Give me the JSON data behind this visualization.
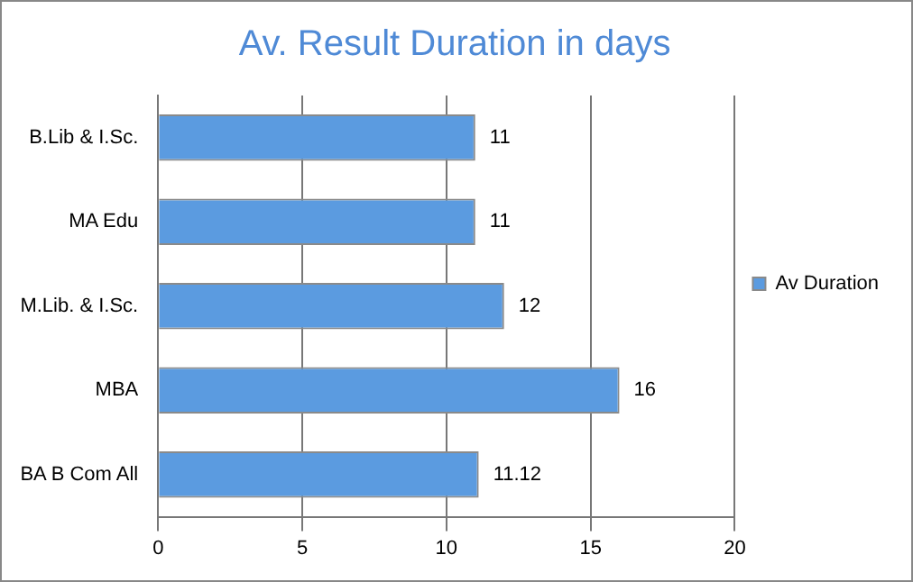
{
  "chart_data": {
    "type": "bar",
    "orientation": "horizontal",
    "title": "Av. Result Duration in days",
    "categories": [
      "B.Lib & I.Sc.",
      "MA Edu",
      "M.Lib. & I.Sc.",
      "MBA",
      "BA B Com All"
    ],
    "series": [
      {
        "name": "Av Duration",
        "color": "#5b9be0",
        "values": [
          11,
          11,
          12,
          16,
          11.12
        ]
      }
    ],
    "xlim": [
      0,
      20
    ],
    "xticks": [
      0,
      5,
      10,
      15,
      20
    ],
    "grid": "x",
    "legend": "right",
    "data_labels": true
  }
}
